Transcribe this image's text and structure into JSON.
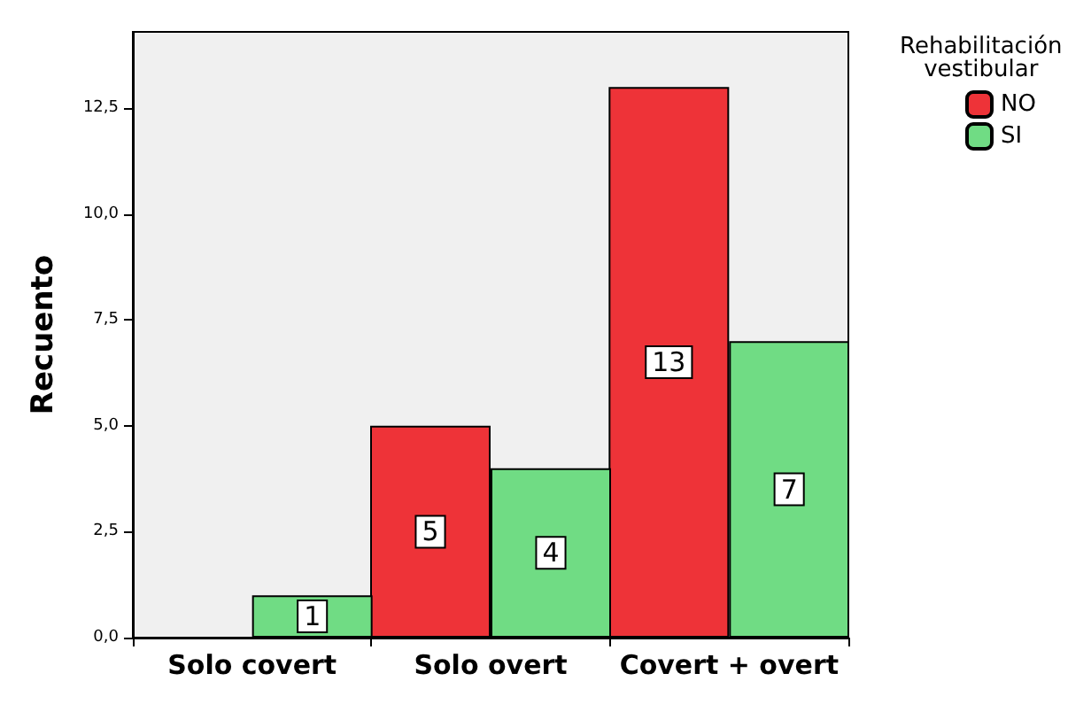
{
  "chart_data": {
    "type": "bar",
    "ylabel": "Recuento",
    "legend_title": "Rehabilitación\nvestibular",
    "categories": [
      "Solo covert",
      "Solo overt",
      "Covert + overt"
    ],
    "series": [
      {
        "name": "NO",
        "color": "#ee3338",
        "values": [
          null,
          5,
          13
        ]
      },
      {
        "name": "SI",
        "color": "#70dc84",
        "values": [
          1,
          4,
          7
        ]
      }
    ],
    "ylim": [
      0,
      14.3
    ],
    "yticks": [
      {
        "value": 0,
        "label": "0,0"
      },
      {
        "value": 2.5,
        "label": "2,5"
      },
      {
        "value": 5,
        "label": "5,0"
      },
      {
        "value": 7.5,
        "label": "7,5"
      },
      {
        "value": 10,
        "label": "10,0"
      },
      {
        "value": 12.5,
        "label": "12,5"
      }
    ],
    "grid": false,
    "legend": "top right",
    "data_labels": true
  }
}
